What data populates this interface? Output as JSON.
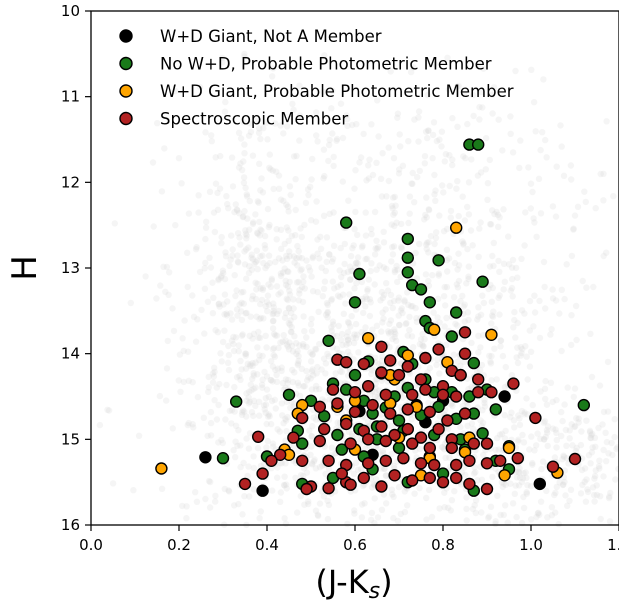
{
  "chart_data": {
    "type": "scatter",
    "xlabel_main": "(J-K",
    "xlabel_sub": "s",
    "xlabel_close": ")",
    "ylabel": "H",
    "xlim": [
      0.0,
      1.2
    ],
    "ylim": [
      16,
      10
    ],
    "y_inverted": true,
    "x_ticks": [
      {
        "value": 0.0,
        "label": "0.0"
      },
      {
        "value": 0.2,
        "label": "0.2"
      },
      {
        "value": 0.4,
        "label": "0.4"
      },
      {
        "value": 0.6,
        "label": "0.6"
      },
      {
        "value": 0.8,
        "label": "0.8"
      },
      {
        "value": 1.0,
        "label": "1.0"
      },
      {
        "value": 1.2,
        "label": "1.2"
      }
    ],
    "y_ticks": [
      {
        "value": 10,
        "label": "10"
      },
      {
        "value": 11,
        "label": "11"
      },
      {
        "value": 12,
        "label": "12"
      },
      {
        "value": 13,
        "label": "13"
      },
      {
        "value": 14,
        "label": "14"
      },
      {
        "value": 15,
        "label": "15"
      },
      {
        "value": 16,
        "label": "16"
      }
    ],
    "legend_position": "top-left",
    "grid": false,
    "background_field": {
      "color": "#d9d9d9",
      "opacity": 0.25
    },
    "series": [
      {
        "name": "W+D Giant, Not A Member",
        "color": "#000000",
        "points": [
          [
            0.26,
            15.21
          ],
          [
            0.39,
            15.6
          ],
          [
            0.61,
            14.67
          ],
          [
            0.64,
            15.18
          ],
          [
            0.94,
            14.5
          ],
          [
            1.02,
            15.52
          ],
          [
            0.74,
            14.6
          ],
          [
            0.76,
            14.8
          ],
          [
            0.8,
            14.55
          ]
        ]
      },
      {
        "name": "No W+D, Probable Photometric Member",
        "color": "#1a7a1a",
        "points": [
          [
            0.86,
            11.56
          ],
          [
            0.88,
            11.56
          ],
          [
            0.58,
            12.47
          ],
          [
            0.72,
            12.66
          ],
          [
            0.61,
            13.07
          ],
          [
            0.72,
            12.88
          ],
          [
            0.79,
            12.91
          ],
          [
            0.72,
            13.05
          ],
          [
            0.89,
            13.16
          ],
          [
            0.73,
            13.2
          ],
          [
            0.75,
            13.25
          ],
          [
            0.6,
            13.4
          ],
          [
            0.77,
            13.4
          ],
          [
            0.54,
            13.85
          ],
          [
            0.76,
            13.62
          ],
          [
            0.77,
            13.7
          ],
          [
            0.83,
            13.52
          ],
          [
            0.82,
            13.8
          ],
          [
            0.63,
            14.09
          ],
          [
            0.71,
            13.98
          ],
          [
            0.73,
            14.12
          ],
          [
            0.6,
            14.25
          ],
          [
            0.66,
            14.23
          ],
          [
            0.76,
            14.3
          ],
          [
            0.84,
            14.25
          ],
          [
            0.87,
            14.11
          ],
          [
            0.45,
            14.48
          ],
          [
            0.55,
            14.35
          ],
          [
            0.58,
            14.42
          ],
          [
            0.62,
            14.55
          ],
          [
            0.69,
            14.5
          ],
          [
            0.72,
            14.4
          ],
          [
            0.78,
            14.45
          ],
          [
            0.82,
            14.45
          ],
          [
            0.86,
            14.5
          ],
          [
            0.9,
            14.42
          ],
          [
            0.33,
            14.56
          ],
          [
            0.5,
            14.55
          ],
          [
            0.53,
            14.73
          ],
          [
            0.64,
            14.7
          ],
          [
            0.67,
            14.63
          ],
          [
            0.7,
            14.78
          ],
          [
            0.75,
            14.72
          ],
          [
            0.79,
            14.62
          ],
          [
            0.83,
            14.76
          ],
          [
            0.87,
            14.7
          ],
          [
            0.92,
            14.65
          ],
          [
            1.12,
            14.6
          ],
          [
            0.47,
            14.9
          ],
          [
            0.56,
            14.95
          ],
          [
            0.61,
            14.88
          ],
          [
            0.65,
            15.0
          ],
          [
            0.71,
            14.9
          ],
          [
            0.78,
            14.95
          ],
          [
            0.84,
            15.0
          ],
          [
            0.89,
            14.93
          ],
          [
            0.3,
            15.22
          ],
          [
            0.4,
            15.2
          ],
          [
            0.48,
            15.05
          ],
          [
            0.57,
            15.12
          ],
          [
            0.62,
            15.2
          ],
          [
            0.7,
            15.1
          ],
          [
            0.77,
            15.2
          ],
          [
            0.85,
            15.12
          ],
          [
            0.92,
            15.25
          ],
          [
            0.95,
            15.08
          ],
          [
            0.48,
            15.52
          ],
          [
            0.55,
            15.45
          ],
          [
            0.64,
            15.35
          ],
          [
            0.72,
            15.5
          ],
          [
            0.8,
            15.4
          ],
          [
            0.87,
            15.6
          ],
          [
            0.95,
            15.35
          ],
          [
            0.65,
            14.85
          ]
        ]
      },
      {
        "name": "W+D Giant, Probable Photometric Member",
        "color": "#ffa500",
        "points": [
          [
            0.83,
            12.53
          ],
          [
            0.63,
            13.82
          ],
          [
            0.78,
            13.72
          ],
          [
            0.91,
            13.78
          ],
          [
            0.72,
            14.02
          ],
          [
            0.69,
            14.3
          ],
          [
            0.81,
            14.1
          ],
          [
            0.48,
            14.6
          ],
          [
            0.56,
            14.62
          ],
          [
            0.6,
            14.55
          ],
          [
            0.68,
            14.58
          ],
          [
            0.74,
            14.62
          ],
          [
            0.47,
            14.7
          ],
          [
            0.58,
            14.78
          ],
          [
            0.7,
            14.98
          ],
          [
            0.86,
            14.98
          ],
          [
            0.44,
            15.12
          ],
          [
            0.45,
            15.18
          ],
          [
            0.6,
            15.12
          ],
          [
            0.77,
            15.22
          ],
          [
            0.85,
            15.15
          ],
          [
            0.95,
            15.1
          ],
          [
            0.16,
            15.34
          ],
          [
            0.75,
            15.42
          ],
          [
            0.94,
            15.42
          ],
          [
            1.06,
            15.39
          ],
          [
            0.68,
            14.25
          ]
        ]
      },
      {
        "name": "Spectroscopic Member",
        "color": "#b22222",
        "points": [
          [
            0.85,
            13.75
          ],
          [
            0.56,
            14.07
          ],
          [
            0.58,
            14.1
          ],
          [
            0.62,
            14.12
          ],
          [
            0.66,
            14.22
          ],
          [
            0.68,
            14.08
          ],
          [
            0.72,
            14.15
          ],
          [
            0.76,
            14.05
          ],
          [
            0.79,
            13.95
          ],
          [
            0.82,
            14.2
          ],
          [
            0.85,
            14.0
          ],
          [
            0.88,
            14.3
          ],
          [
            0.66,
            13.92
          ],
          [
            0.7,
            14.25
          ],
          [
            0.75,
            14.3
          ],
          [
            0.8,
            14.38
          ],
          [
            0.84,
            14.25
          ],
          [
            0.88,
            14.45
          ],
          [
            0.91,
            14.45
          ],
          [
            0.96,
            14.35
          ],
          [
            0.55,
            14.42
          ],
          [
            0.6,
            14.45
          ],
          [
            0.63,
            14.38
          ],
          [
            0.67,
            14.48
          ],
          [
            0.73,
            14.48
          ],
          [
            0.76,
            14.42
          ],
          [
            0.8,
            14.48
          ],
          [
            0.83,
            14.5
          ],
          [
            0.52,
            14.62
          ],
          [
            0.56,
            14.58
          ],
          [
            0.6,
            14.68
          ],
          [
            0.64,
            14.6
          ],
          [
            0.68,
            14.7
          ],
          [
            0.72,
            14.65
          ],
          [
            0.77,
            14.68
          ],
          [
            0.81,
            14.78
          ],
          [
            0.85,
            14.7
          ],
          [
            0.48,
            14.75
          ],
          [
            0.53,
            14.88
          ],
          [
            0.58,
            14.82
          ],
          [
            0.62,
            14.9
          ],
          [
            0.66,
            14.85
          ],
          [
            0.69,
            14.95
          ],
          [
            0.72,
            14.88
          ],
          [
            0.75,
            14.98
          ],
          [
            0.79,
            14.88
          ],
          [
            0.82,
            15.0
          ],
          [
            0.38,
            14.97
          ],
          [
            0.46,
            14.98
          ],
          [
            0.52,
            15.02
          ],
          [
            0.59,
            15.05
          ],
          [
            0.63,
            15.0
          ],
          [
            0.67,
            15.02
          ],
          [
            0.73,
            15.05
          ],
          [
            0.77,
            15.1
          ],
          [
            0.82,
            15.1
          ],
          [
            0.87,
            15.05
          ],
          [
            0.9,
            15.05
          ],
          [
            1.01,
            14.75
          ],
          [
            0.43,
            15.18
          ],
          [
            0.48,
            15.25
          ],
          [
            0.54,
            15.25
          ],
          [
            0.58,
            15.3
          ],
          [
            0.63,
            15.28
          ],
          [
            0.67,
            15.25
          ],
          [
            0.71,
            15.22
          ],
          [
            0.75,
            15.28
          ],
          [
            0.78,
            15.3
          ],
          [
            0.83,
            15.3
          ],
          [
            0.86,
            15.25
          ],
          [
            0.9,
            15.28
          ],
          [
            0.93,
            15.25
          ],
          [
            0.97,
            15.22
          ],
          [
            1.05,
            15.32
          ],
          [
            1.1,
            15.23
          ],
          [
            0.35,
            15.52
          ],
          [
            0.39,
            15.4
          ],
          [
            0.41,
            15.25
          ],
          [
            0.5,
            15.55
          ],
          [
            0.54,
            15.57
          ],
          [
            0.58,
            15.5
          ],
          [
            0.62,
            15.45
          ],
          [
            0.66,
            15.55
          ],
          [
            0.69,
            15.42
          ],
          [
            0.73,
            15.48
          ],
          [
            0.77,
            15.45
          ],
          [
            0.8,
            15.5
          ],
          [
            0.83,
            15.45
          ],
          [
            0.86,
            15.52
          ],
          [
            0.9,
            15.58
          ],
          [
            0.49,
            15.58
          ],
          [
            0.57,
            15.4
          ],
          [
            0.59,
            15.53
          ]
        ]
      }
    ]
  }
}
